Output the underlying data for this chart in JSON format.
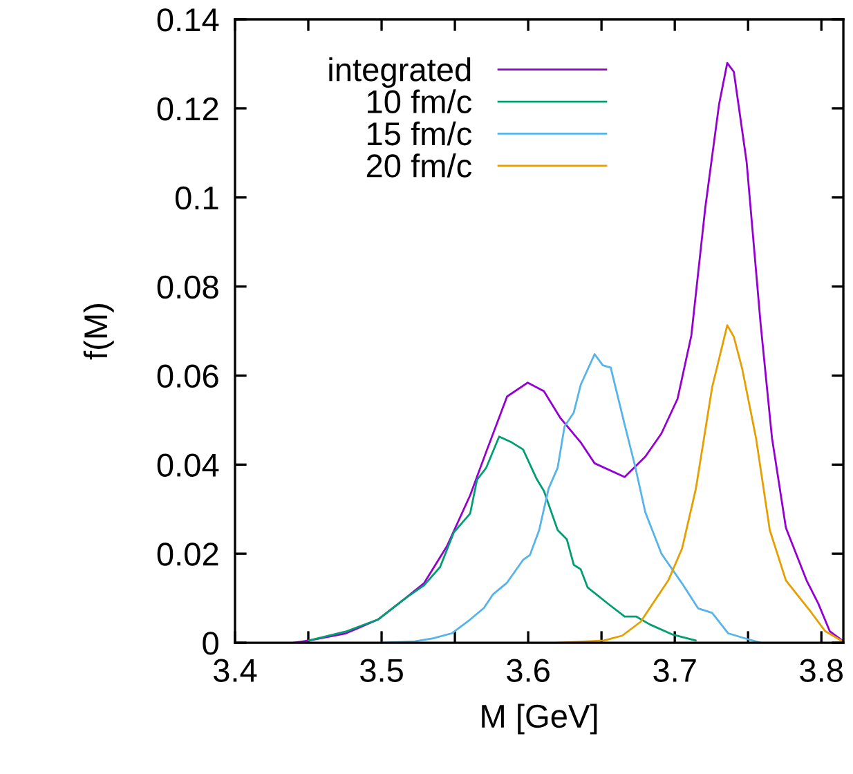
{
  "chart_data": {
    "type": "line",
    "xlabel": "M [GeV]",
    "ylabel": "f(M)",
    "xlim": [
      3.4,
      3.815
    ],
    "ylim": [
      0,
      0.14
    ],
    "xticks": [
      3.4,
      {
        "value": 3.45,
        "label": null
      },
      3.5,
      {
        "value": 3.55,
        "label": null
      },
      3.6,
      {
        "value": 3.65,
        "label": null
      },
      3.7,
      {
        "value": 3.75,
        "label": null
      },
      3.8
    ],
    "yticks": [
      0,
      0.02,
      0.04,
      0.06,
      0.08,
      0.1,
      0.12,
      0.14
    ],
    "grid": false,
    "legend": "top left",
    "marker": "none",
    "line_style": "solid",
    "series": [
      {
        "name": "integrated",
        "color": "#9400d3",
        "x": [
          3.44,
          3.4503,
          3.4755,
          3.4975,
          3.5163,
          3.529,
          3.5446,
          3.5604,
          3.5714,
          3.5856,
          3.5997,
          3.6107,
          3.6217,
          3.6358,
          3.6453,
          3.6658,
          3.6799,
          3.6909,
          3.7019,
          3.7113,
          3.7208,
          3.7302,
          3.7358,
          3.7403,
          3.749,
          3.7585,
          3.7663,
          3.7758,
          3.7899,
          3.7979,
          3.8057,
          3.815
        ],
        "values": [
          0,
          0.0005,
          0.0021,
          0.0052,
          0.01,
          0.0134,
          0.0217,
          0.0331,
          0.0429,
          0.0553,
          0.0584,
          0.0565,
          0.0506,
          0.045,
          0.0403,
          0.0372,
          0.0418,
          0.047,
          0.0548,
          0.069,
          0.0977,
          0.1209,
          0.1302,
          0.1282,
          0.108,
          0.0718,
          0.046,
          0.0258,
          0.014,
          0.0088,
          0.0026,
          0.0003
        ]
      },
      {
        "name": "10 fm/c",
        "color": "#009e73",
        "x": [
          3.4503,
          3.4755,
          3.4975,
          3.5163,
          3.529,
          3.5399,
          3.5493,
          3.5604,
          3.5651,
          3.5714,
          3.5802,
          3.5887,
          3.5965,
          3.6059,
          3.6107,
          3.6201,
          3.6264,
          3.6311,
          3.6358,
          3.6406,
          3.6547,
          3.6658,
          3.6736,
          3.683,
          3.6988,
          3.7142
        ],
        "values": [
          0.0005,
          0.0025,
          0.0052,
          0.01,
          0.0129,
          0.017,
          0.0248,
          0.029,
          0.0366,
          0.0393,
          0.0463,
          0.045,
          0.0434,
          0.0367,
          0.0341,
          0.0253,
          0.0232,
          0.0175,
          0.0165,
          0.0124,
          0.0087,
          0.0059,
          0.0059,
          0.0041,
          0.0018,
          0.0005
        ]
      },
      {
        "name": "15 fm/c",
        "color": "#56b4e9",
        "x": [
          3.5,
          3.5226,
          3.5352,
          3.5478,
          3.5604,
          3.5698,
          3.5761,
          3.5856,
          3.5965,
          3.6012,
          3.6075,
          3.6139,
          3.6201,
          3.6248,
          3.6311,
          3.6358,
          3.6453,
          3.6509,
          3.6563,
          3.6658,
          3.6729,
          3.6799,
          3.6909,
          3.705,
          3.716,
          3.7255,
          3.7365,
          3.7507,
          3.7585
        ],
        "values": [
          0,
          0.0003,
          0.001,
          0.0021,
          0.0052,
          0.0078,
          0.0109,
          0.0135,
          0.0186,
          0.0197,
          0.0253,
          0.0346,
          0.0393,
          0.0486,
          0.0517,
          0.0579,
          0.0648,
          0.0623,
          0.0618,
          0.049,
          0.0397,
          0.0293,
          0.02,
          0.0133,
          0.0077,
          0.0067,
          0.0021,
          0.0007,
          0
        ]
      },
      {
        "name": "20 fm/c",
        "color": "#e69f00",
        "x": [
          3.62,
          3.6516,
          3.6642,
          3.6767,
          3.6956,
          3.705,
          3.7144,
          3.7255,
          3.7358,
          3.7403,
          3.746,
          3.7554,
          3.7648,
          3.7758,
          3.7931,
          3.8026,
          3.8135
        ],
        "values": [
          0,
          0.0005,
          0.0016,
          0.0047,
          0.014,
          0.0212,
          0.0346,
          0.0574,
          0.0713,
          0.0687,
          0.0615,
          0.046,
          0.0253,
          0.014,
          0.0068,
          0.0026,
          0.0005
        ]
      }
    ]
  }
}
